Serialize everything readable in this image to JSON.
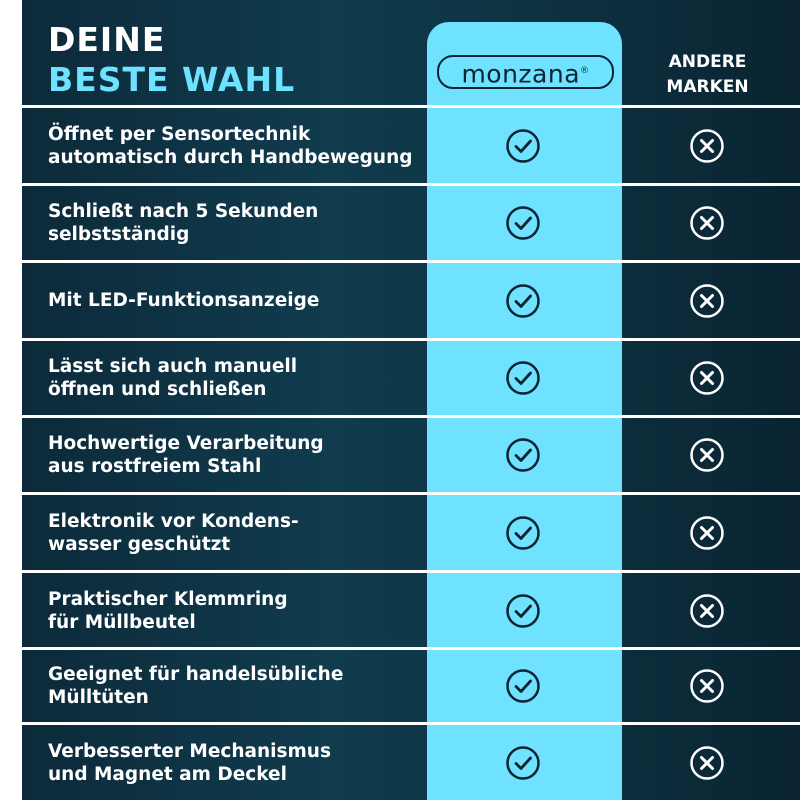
{
  "header": {
    "title": [
      "DEINE",
      "BESTE WAHL"
    ],
    "brand": "monzana",
    "brand_mark": "®",
    "other": [
      "ANDERE",
      "MARKEN"
    ]
  },
  "rows": [
    [
      "Öffnet per Sensortechnik",
      "automatisch durch Handbewegung"
    ],
    [
      "Schließt nach 5 Sekunden",
      "selbstständig"
    ],
    [
      "Mit LED-Funktionsanzeige"
    ],
    [
      "Lässt sich auch manuell",
      "öffnen und schließen"
    ],
    [
      "Hochwertige Verarbeitung",
      "aus rostfreiem Stahl"
    ],
    [
      "Elektronik vor Kondens-",
      "wasser geschützt"
    ],
    [
      "Praktischer Klemmring",
      "für Müllbeutel"
    ],
    [
      "Geeignet für handelsübliche",
      "Mülltüten"
    ],
    [
      "Verbesserter Mechanismus",
      "und Magnet am Deckel"
    ]
  ]
}
